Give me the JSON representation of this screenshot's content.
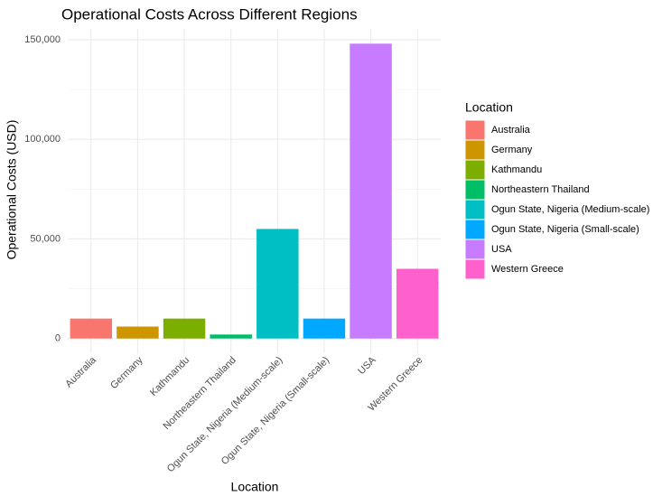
{
  "chart_data": {
    "type": "bar",
    "title": "Operational Costs Across Different Regions",
    "x_label": "Location",
    "y_label": "Operational Costs (USD)",
    "legend_title": "Location",
    "categories": [
      "Australia",
      "Germany",
      "Kathmandu",
      "Northeastern Thailand",
      "Ogun State, Nigeria (Medium-scale)",
      "Ogun State, Nigeria (Small-scale)",
      "USA",
      "Western Greece"
    ],
    "values": [
      10000,
      6000,
      10000,
      2000,
      55000,
      10000,
      148000,
      35000
    ],
    "colors": [
      "#F8766D",
      "#CD9600",
      "#7CAE00",
      "#00BE67",
      "#00BFC4",
      "#00A9FF",
      "#C77CFF",
      "#FF61CC"
    ],
    "ylim": [
      -7400,
      155400
    ],
    "yticks": [
      0,
      {
        "value": 50000,
        "label": "50,000"
      },
      {
        "value": 100000,
        "label": "100,000"
      },
      {
        "value": 150000,
        "label": "150,000"
      }
    ],
    "grid": true,
    "legend_position": "right"
  }
}
